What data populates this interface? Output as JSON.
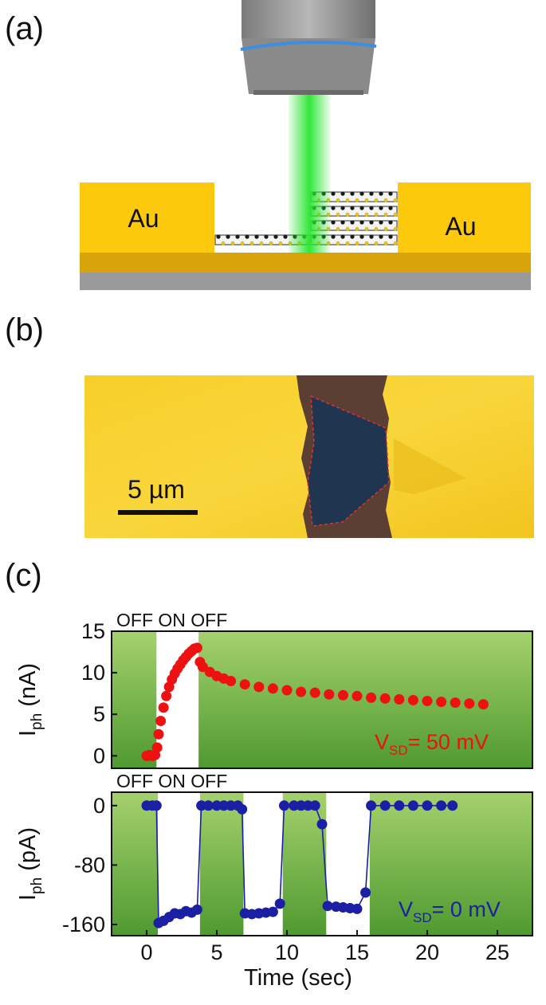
{
  "figure": {
    "panel_labels": {
      "a": "(a)",
      "b": "(b)",
      "c": "(c)"
    },
    "schematic": {
      "left_electrode": "Au",
      "right_electrode": "Au"
    },
    "micrograph": {
      "scale_bar": "5 µm"
    },
    "colors": {
      "gold": "#fcc90c",
      "laser": "#28e62f",
      "on_region": "#ffffff",
      "green_bg": "#4f9a2f",
      "top_series": "#ee1111",
      "bottom_series": "#1b1fa3"
    }
  },
  "chart_data": [
    {
      "type": "scatter",
      "title": "",
      "state_labels": "OFF ON OFF",
      "ylabel": "I",
      "ylabel_sub": "ph",
      "ylabel_unit": " (nA)",
      "ylim": [
        -1.5,
        15
      ],
      "yticks": [
        0,
        5,
        10,
        15
      ],
      "xlim": [
        -2.5,
        27.5
      ],
      "on_intervals": [
        [
          0.7,
          3.7
        ]
      ],
      "annotation": {
        "main": "V",
        "sub": "SD",
        "rest": "= 50 mV"
      },
      "series": [
        {
          "color": "#ee1111",
          "points": [
            [
              0.0,
              0.0
            ],
            [
              0.2,
              0.1
            ],
            [
              0.4,
              0.0
            ],
            [
              0.6,
              0.1
            ],
            [
              0.75,
              1.0
            ],
            [
              0.85,
              2.6
            ],
            [
              1.0,
              4.2
            ],
            [
              1.2,
              5.8
            ],
            [
              1.4,
              7.2
            ],
            [
              1.6,
              8.3
            ],
            [
              1.8,
              9.2
            ],
            [
              2.0,
              9.9
            ],
            [
              2.2,
              10.5
            ],
            [
              2.4,
              11.0
            ],
            [
              2.6,
              11.5
            ],
            [
              2.8,
              11.9
            ],
            [
              3.0,
              12.3
            ],
            [
              3.2,
              12.6
            ],
            [
              3.4,
              12.9
            ],
            [
              3.6,
              13.0
            ],
            [
              3.8,
              11.3
            ],
            [
              4.0,
              10.7
            ],
            [
              4.5,
              10.1
            ],
            [
              5.0,
              9.6
            ],
            [
              5.5,
              9.3
            ],
            [
              6.0,
              9.0
            ],
            [
              7.0,
              8.6
            ],
            [
              8.0,
              8.3
            ],
            [
              9.0,
              8.1
            ],
            [
              10.0,
              7.9
            ],
            [
              11.0,
              7.7
            ],
            [
              12.0,
              7.6
            ],
            [
              13.0,
              7.4
            ],
            [
              14.0,
              7.3
            ],
            [
              15.0,
              7.2
            ],
            [
              16.0,
              7.0
            ],
            [
              17.0,
              6.9
            ],
            [
              18.0,
              6.8
            ],
            [
              19.0,
              6.7
            ],
            [
              20.0,
              6.6
            ],
            [
              21.0,
              6.5
            ],
            [
              22.0,
              6.4
            ],
            [
              23.0,
              6.3
            ],
            [
              24.0,
              6.2
            ]
          ]
        }
      ]
    },
    {
      "type": "line",
      "title": "",
      "state_labels": "OFF ON OFF",
      "xlabel": "Time (sec)",
      "ylabel": "I",
      "ylabel_sub": "ph",
      "ylabel_unit": " (pA)",
      "ylim": [
        -175,
        18
      ],
      "yticks": [
        0,
        -80,
        -160
      ],
      "xlim": [
        -2.5,
        27.5
      ],
      "xticks": [
        0,
        5,
        10,
        15,
        20,
        25
      ],
      "on_intervals": [
        [
          0.8,
          3.8
        ],
        [
          6.9,
          9.7
        ],
        [
          12.8,
          15.9
        ]
      ],
      "annotation": {
        "main": "V",
        "sub": "SD",
        "rest": "= 0 mV"
      },
      "series": [
        {
          "color": "#1b1fa3",
          "points": [
            [
              0.0,
              0
            ],
            [
              0.4,
              0
            ],
            [
              0.7,
              0
            ],
            [
              0.85,
              -158
            ],
            [
              1.2,
              -155
            ],
            [
              1.6,
              -150
            ],
            [
              2.0,
              -145
            ],
            [
              2.4,
              -146
            ],
            [
              2.8,
              -142
            ],
            [
              3.2,
              -144
            ],
            [
              3.6,
              -140
            ],
            [
              3.9,
              0
            ],
            [
              4.4,
              0
            ],
            [
              5.0,
              0
            ],
            [
              5.5,
              0
            ],
            [
              6.0,
              0
            ],
            [
              6.5,
              0
            ],
            [
              6.8,
              -5
            ],
            [
              7.0,
              -145
            ],
            [
              7.5,
              -146
            ],
            [
              8.0,
              -145
            ],
            [
              8.5,
              -144
            ],
            [
              9.0,
              -143
            ],
            [
              9.5,
              -132
            ],
            [
              9.8,
              0
            ],
            [
              10.5,
              0
            ],
            [
              11.0,
              0
            ],
            [
              11.5,
              0
            ],
            [
              12.0,
              0
            ],
            [
              12.5,
              -25
            ],
            [
              12.9,
              -135
            ],
            [
              13.5,
              -136
            ],
            [
              14.0,
              -137
            ],
            [
              14.5,
              -138
            ],
            [
              15.0,
              -139
            ],
            [
              15.6,
              -117
            ],
            [
              16.0,
              0
            ],
            [
              17.0,
              0
            ],
            [
              18.0,
              0
            ],
            [
              19.0,
              0
            ],
            [
              20.0,
              0
            ],
            [
              21.0,
              0
            ],
            [
              21.8,
              0
            ]
          ]
        }
      ]
    }
  ]
}
